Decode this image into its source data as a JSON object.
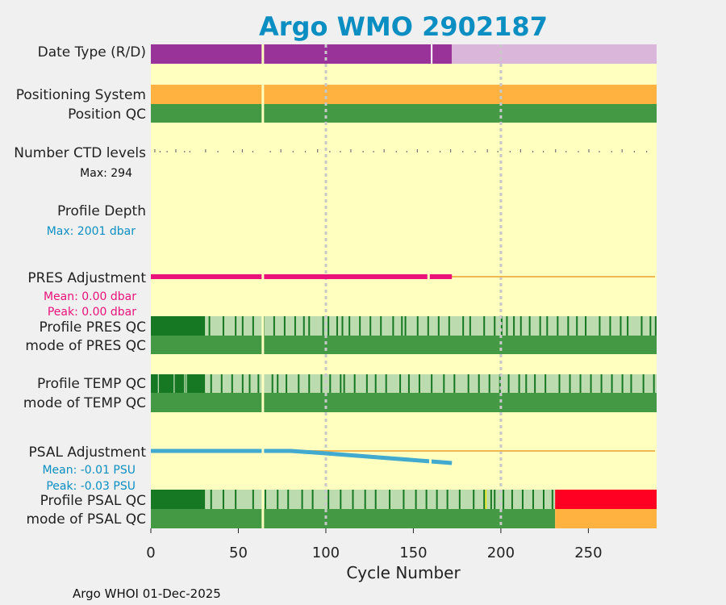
{
  "chart_data": {
    "type": "bar",
    "title": "Argo WMO 2902187",
    "xlabel": "Cycle Number",
    "xlim": [
      0,
      289
    ],
    "xticks": [
      0,
      50,
      100,
      150,
      200,
      250
    ],
    "xtick_labels": [
      "0",
      "50",
      "100",
      "150",
      "200",
      "250"
    ],
    "vertical_gridlines": [
      100,
      200
    ],
    "missing_cycle": 64,
    "footer": "Argo WHOI 01-Dec-2025",
    "colors": {
      "title": "#0b8ec2",
      "background": "#ffffc0",
      "figure": "#f0f0f0",
      "delayed_mode": "#993399",
      "realtime_mode": "#dab6da",
      "gps": "#ffb240",
      "qc_good": "#449944",
      "qc_good_dark": "#167822",
      "qc_probably_good": "#bcdcb0",
      "qc_bad": "#ff0022",
      "qc_questionable": "#ffb240",
      "qc_flag_yellow": "#e8e830",
      "ctd": "#737373",
      "depth": "#42a9cf",
      "pres_line": "#e8127a",
      "psal_line": "#42a9cf",
      "zero_line": "#f0b850",
      "grid": "#c8c8c8"
    },
    "rows": [
      {
        "label": "Date Type (R/D)",
        "segments": [
          {
            "from": 0,
            "to": 172,
            "value": "D",
            "color": "#993399"
          },
          {
            "from": 172,
            "to": 289,
            "value": "R",
            "color": "#dab6da"
          }
        ]
      },
      {
        "label": "Positioning System",
        "segments": [
          {
            "from": 0,
            "to": 289,
            "value": "GPS",
            "color": "#ffb240"
          }
        ]
      },
      {
        "label": "Position QC",
        "segments": [
          {
            "from": 0,
            "to": 289,
            "value": "1",
            "color": "#449944"
          }
        ]
      },
      {
        "label": "Number CTD levels",
        "annotation": "Max: 294",
        "series": {
          "max": 294,
          "typical": 294,
          "color": "#737373"
        }
      },
      {
        "label": "Profile Depth",
        "annotation": "Max: 2001 dbar",
        "series": {
          "max": 2001,
          "unit": "dbar",
          "color": "#42a9cf"
        }
      },
      {
        "label": "PRES Adjustment",
        "annotations": [
          "Mean: 0.00 dbar",
          "Peak: 0.00 dbar"
        ],
        "series": {
          "x": [
            0,
            172
          ],
          "y": [
            0.0,
            0.0
          ],
          "unit": "dbar",
          "color": "#e8127a"
        }
      },
      {
        "label": "Profile PRES QC",
        "segments": [
          {
            "from": 0,
            "to": 31,
            "value": "A",
            "color": "#167822"
          },
          {
            "from": 31,
            "to": 289,
            "value": "B/A",
            "color": "#bcdcb0"
          }
        ]
      },
      {
        "label": "mode of PRES QC",
        "segments": [
          {
            "from": 0,
            "to": 289,
            "value": "1",
            "color": "#449944"
          }
        ]
      },
      {
        "label": "Profile TEMP QC",
        "segments": [
          {
            "from": 0,
            "to": 31,
            "value": "A",
            "color": "#167822"
          },
          {
            "from": 31,
            "to": 289,
            "value": "B/A",
            "color": "#bcdcb0"
          }
        ]
      },
      {
        "label": "mode of TEMP QC",
        "segments": [
          {
            "from": 0,
            "to": 289,
            "value": "1",
            "color": "#449944"
          }
        ]
      },
      {
        "label": "PSAL Adjustment",
        "annotations": [
          "Mean: -0.01 PSU",
          "Peak: -0.03 PSU"
        ],
        "series": {
          "x": [
            0,
            80,
            100,
            172
          ],
          "y": [
            0.0,
            0.0,
            -0.006,
            -0.03
          ],
          "unit": "PSU",
          "color": "#42a9cf"
        }
      },
      {
        "label": "Profile PSAL QC",
        "segments": [
          {
            "from": 0,
            "to": 31,
            "value": "A",
            "color": "#167822"
          },
          {
            "from": 31,
            "to": 231,
            "value": "B/A",
            "color": "#bcdcb0"
          },
          {
            "from": 231,
            "to": 289,
            "value": "F",
            "color": "#ff0022"
          }
        ]
      },
      {
        "label": "mode of PSAL QC",
        "segments": [
          {
            "from": 0,
            "to": 231,
            "value": "1",
            "color": "#449944"
          },
          {
            "from": 231,
            "to": 289,
            "value": "3",
            "color": "#ffb240"
          }
        ]
      }
    ]
  }
}
